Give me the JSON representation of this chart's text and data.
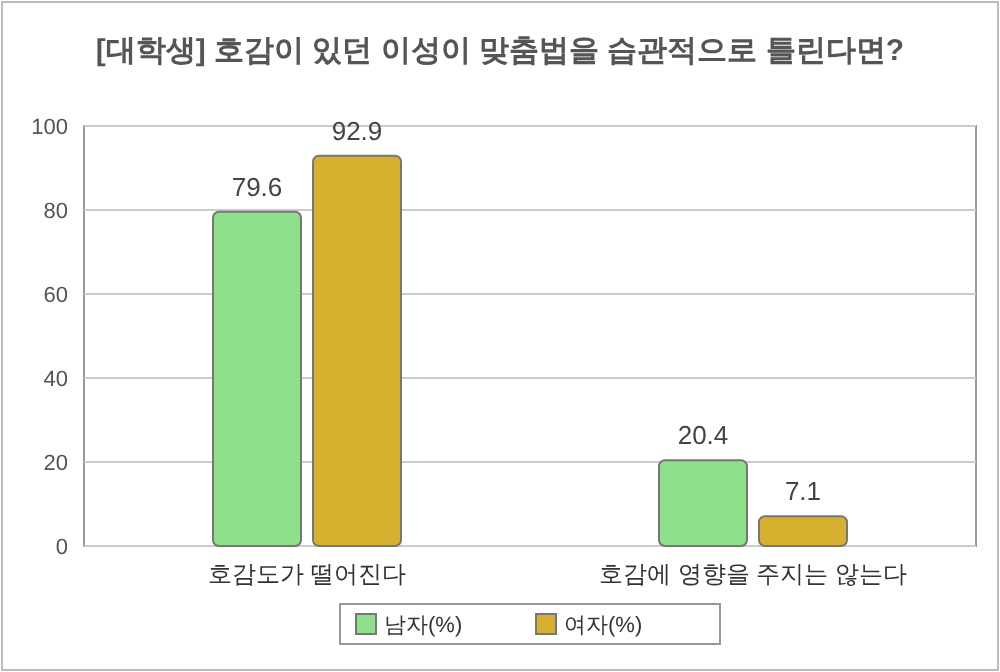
{
  "chart_data": {
    "type": "bar",
    "title": "[대학생] 호감이 있던 이성이 맞춤법을 습관적으로 틀린다면?",
    "categories": [
      "호감도가 떨어진다",
      "호감에 영향을 주지는 않는다"
    ],
    "series": [
      {
        "name": "남자(%)",
        "color": "#8ee08a",
        "values": [
          79.6,
          20.4
        ]
      },
      {
        "name": "여자(%)",
        "color": "#d8b030",
        "values": [
          92.9,
          7.1
        ]
      }
    ],
    "ylim": [
      0,
      100
    ],
    "yticks": [
      0,
      20,
      40,
      60,
      80,
      100
    ],
    "grid": "y",
    "legend": "bottom",
    "data_labels": true
  }
}
